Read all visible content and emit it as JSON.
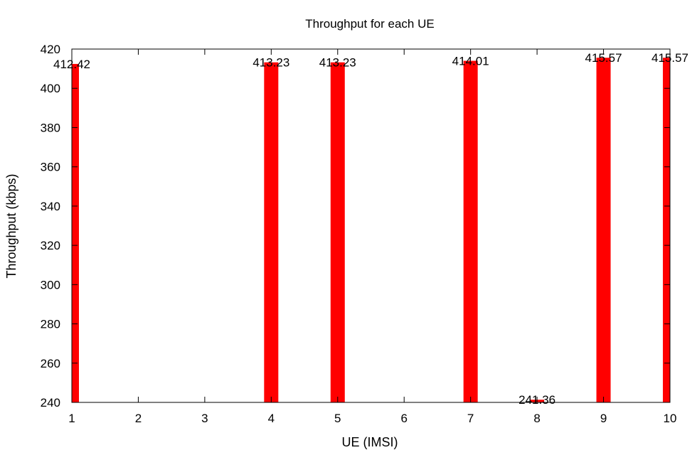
{
  "chart_data": {
    "type": "bar",
    "title": "Throughput for each UE",
    "xlabel": "UE (IMSI)",
    "ylabel": "Throughput (kbps)",
    "ylim": [
      240,
      420
    ],
    "yticks": [
      240,
      260,
      280,
      300,
      320,
      340,
      360,
      380,
      400,
      420
    ],
    "xlim": [
      1,
      10
    ],
    "xticks": [
      1,
      2,
      3,
      4,
      5,
      6,
      7,
      8,
      9,
      10
    ],
    "grid": false,
    "bar_color": "#ff0000",
    "points": [
      {
        "x": 1,
        "value": 412.42,
        "label": "412.42"
      },
      {
        "x": 4,
        "value": 413.23,
        "label": "413.23"
      },
      {
        "x": 5,
        "value": 413.23,
        "label": "413.23"
      },
      {
        "x": 7,
        "value": 414.01,
        "label": "414.01"
      },
      {
        "x": 8,
        "value": 241.36,
        "label": "241.36"
      },
      {
        "x": 9,
        "value": 415.57,
        "label": "415.57"
      },
      {
        "x": 10,
        "value": 415.57,
        "label": "415.57"
      }
    ]
  }
}
